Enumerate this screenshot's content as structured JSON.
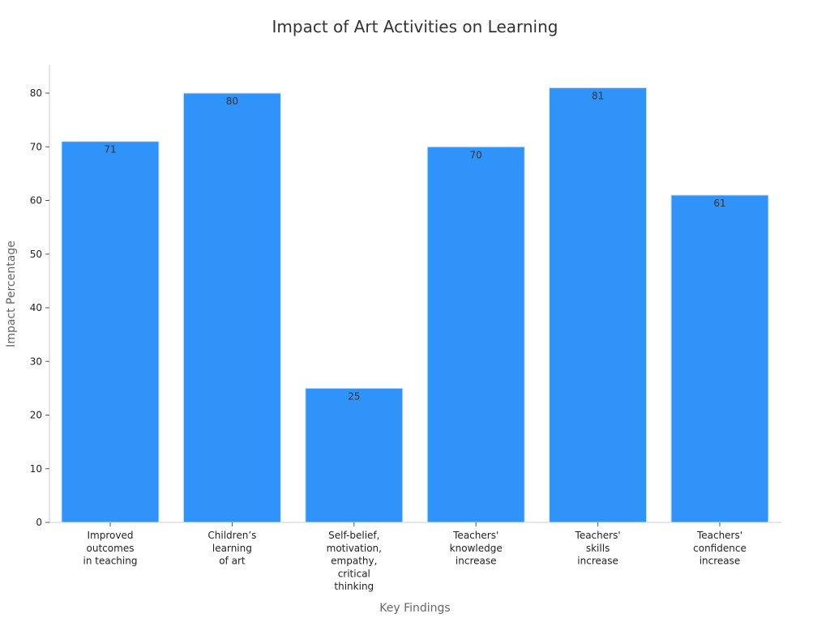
{
  "chart_data": {
    "type": "bar",
    "title": "Impact of Art Activities on Learning",
    "xlabel": "Key Findings",
    "ylabel": "Impact Percentage",
    "categories": [
      [
        "Improved",
        "outcomes",
        "in teaching"
      ],
      [
        "Children’s",
        "learning",
        "of art"
      ],
      [
        "Self-belief,",
        "motivation,",
        "empathy,",
        "critical",
        "thinking"
      ],
      [
        "Teachers'",
        "knowledge",
        "increase"
      ],
      [
        "Teachers'",
        "skills",
        "increase"
      ],
      [
        "Teachers'",
        "confidence",
        "increase"
      ]
    ],
    "values": [
      71,
      80,
      25,
      70,
      81,
      61
    ],
    "ylim": [
      0,
      85
    ],
    "yticks": [
      0,
      10,
      20,
      30,
      40,
      50,
      60,
      70,
      80
    ],
    "grid": false,
    "legend": "none",
    "bar_color": "#2f93f9"
  }
}
